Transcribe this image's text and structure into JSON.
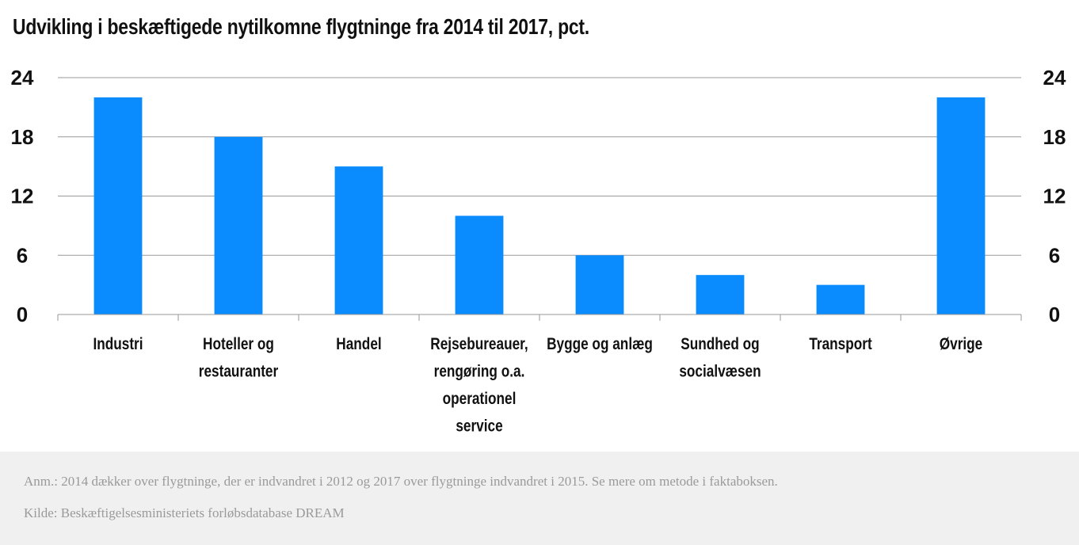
{
  "title": "Udvikling i beskæftigede nytilkomne flygtninge fra 2014 til 2017, pct.",
  "footer": {
    "note": "Anm.: 2014 dækker over flygtninge, der er indvandret i 2012 og 2017 over flygtninge indvandret i 2015. Se mere om metode i faktaboksen.",
    "source": "Kilde: Beskæftigelsesministeriets forløbsdatabase DREAM"
  },
  "colors": {
    "bar": "#0a8cff",
    "grid": "#999999",
    "text": "#111111"
  },
  "chart_data": {
    "type": "bar",
    "title": "Udvikling i beskæftigede nytilkomne flygtninge fra 2014 til 2017, pct.",
    "xlabel": "",
    "ylabel": "",
    "categories": [
      [
        "Industri"
      ],
      [
        "Hoteller og",
        "restauranter"
      ],
      [
        "Handel"
      ],
      [
        "Rejsebureauer,",
        "rengøring o.a.",
        "operationel",
        "service"
      ],
      [
        "Bygge og anlæg"
      ],
      [
        "Sundhed og",
        "socialvæsen"
      ],
      [
        "Transport"
      ],
      [
        "Øvrige"
      ]
    ],
    "values": [
      22,
      18,
      15,
      10,
      6,
      4,
      3,
      22
    ],
    "ylim": [
      0,
      24
    ],
    "yticks": [
      "0",
      "6",
      "12",
      "18",
      "24"
    ],
    "dual_y_axis": true,
    "grid": true
  }
}
